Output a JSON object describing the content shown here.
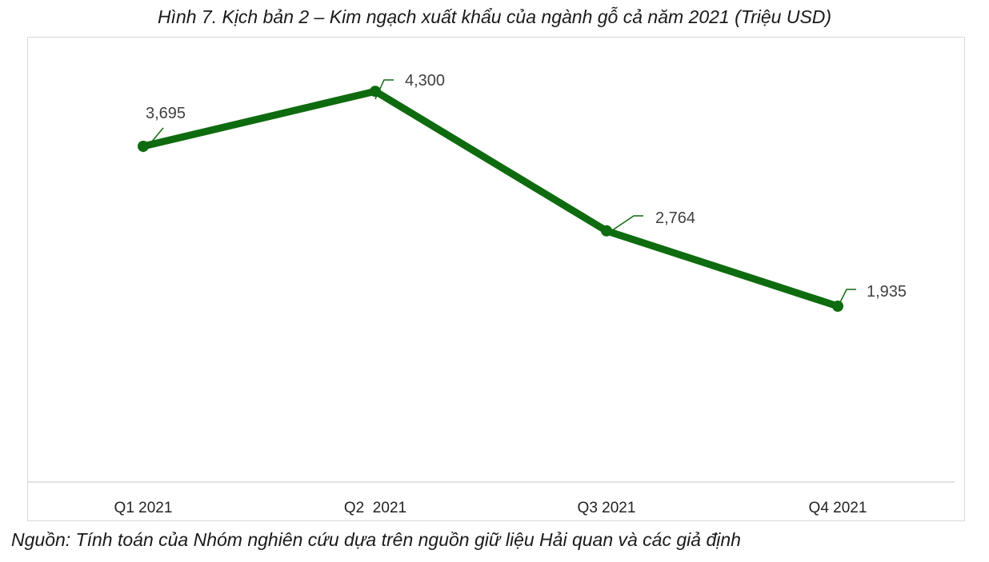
{
  "title": "Hình 7. Kịch bản 2 – Kim ngạch xuất khẩu của ngành gỗ cả năm 2021 (Triệu USD)",
  "source": "Nguồn: Tính toán của Nhóm nghiên cứu dựa trên nguồn giữ liệu Hải quan và các giả định",
  "chart_data": {
    "type": "line",
    "title": "Hình 7. Kịch bản 2 – Kim ngạch xuất khẩu của ngành gỗ cả năm 2021 (Triệu USD)",
    "categories": [
      "Q1 2021",
      "Q2  2021",
      "Q3 2021",
      "Q4 2021"
    ],
    "series": [
      {
        "values": [
          3695,
          4300,
          2764,
          1935
        ],
        "labels": [
          "3,695",
          "4,300",
          "2,764",
          "1,935"
        ]
      }
    ],
    "xlabel": "",
    "ylabel": "",
    "ylim": [
      0,
      4900
    ],
    "grid": false,
    "legend": "none",
    "line_color": "#0f6b0f",
    "axis_color": "#d9d9d9"
  }
}
